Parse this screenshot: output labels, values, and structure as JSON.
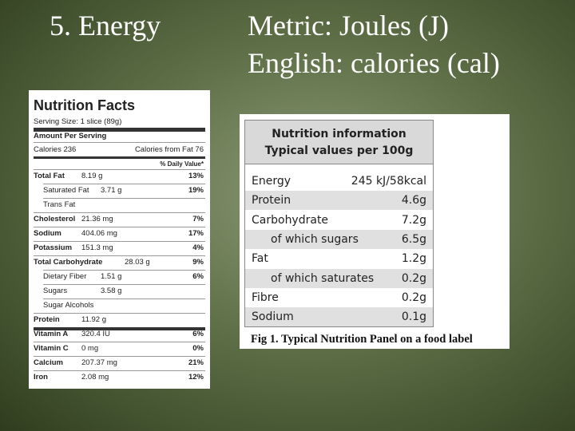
{
  "slide": {
    "heading": "5. Energy",
    "units": [
      "Metric: Joules (J)",
      "English: calories (cal)"
    ]
  },
  "left_label": {
    "title": "Nutrition Facts",
    "serving": "Serving Size: 1 slice (89g)",
    "amount_per_serving": "Amount Per Serving",
    "calories": "Calories 236",
    "calories_from_fat": "Calories from Fat 76",
    "daily_value": "% Daily Value*",
    "rows": [
      {
        "label": "Total Fat",
        "amount": "8.19 g",
        "dv": "13%"
      },
      {
        "label": "Saturated Fat",
        "amount": "3.71 g",
        "dv": "19%"
      },
      {
        "label": "Trans Fat"
      },
      {
        "label": "Cholesterol",
        "amount": "21.36 mg",
        "dv": "7%"
      },
      {
        "label": "Sodium",
        "amount": "404.06 mg",
        "dv": "17%"
      },
      {
        "label": "Potassium",
        "amount": "151.3 mg",
        "dv": "4%"
      },
      {
        "label": "Total Carbohydrate",
        "amount": "28.03 g",
        "dv": "9%"
      },
      {
        "label": "Dietary Fiber",
        "amount": "1.51 g",
        "dv": "6%"
      },
      {
        "label": "Sugars",
        "amount": "3.58 g"
      },
      {
        "label": "Sugar Alcohols"
      },
      {
        "label": "Protein",
        "amount": "11.92 g"
      },
      {
        "label": "Vitamin A",
        "amount": "320.4 IU",
        "dv": "6%"
      },
      {
        "label": "Vitamin C",
        "amount": "0 mg",
        "dv": "0%"
      },
      {
        "label": "Calcium",
        "amount": "207.37 mg",
        "dv": "21%"
      },
      {
        "label": "Iron",
        "amount": "2.08 mg",
        "dv": "12%"
      }
    ]
  },
  "right_panel": {
    "header": [
      "Nutrition information",
      "Typical values per 100g"
    ],
    "rows": [
      [
        "Energy",
        "245 kJ/58kcal"
      ],
      [
        "Protein",
        "4.6g"
      ],
      [
        "Carbohydrate",
        "7.2g"
      ],
      [
        "of which sugars",
        "6.5g"
      ],
      [
        "Fat",
        "1.2g"
      ],
      [
        "of which saturates",
        "0.2g"
      ],
      [
        "Fibre",
        "0.2g"
      ],
      [
        "Sodium",
        "0.1g"
      ]
    ],
    "caption": "Fig 1. Typical Nutrition Panel on a food label"
  }
}
